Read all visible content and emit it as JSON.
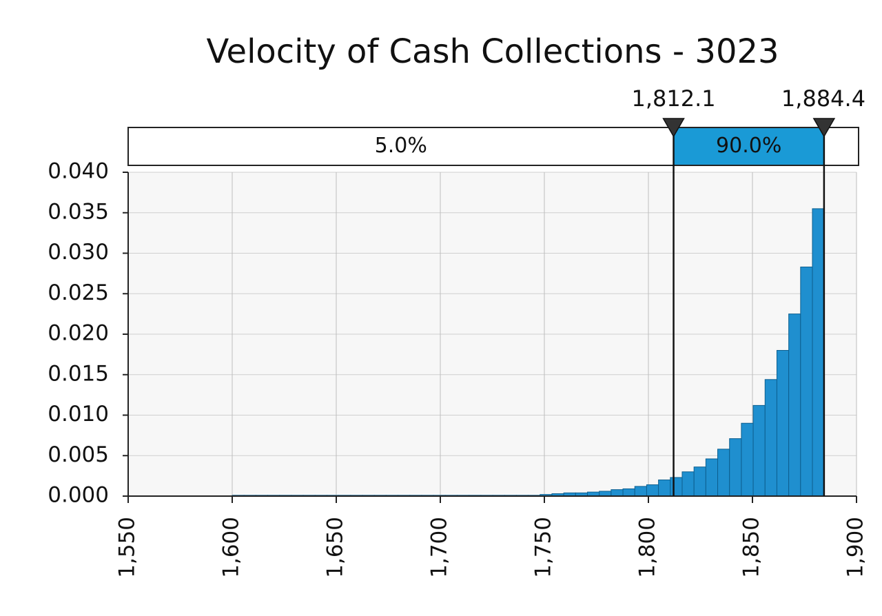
{
  "chart_data": {
    "type": "histogram",
    "title": "Velocity of Cash Collections - 3023",
    "bins": [
      1600,
      1605.69,
      1611.38,
      1617.07,
      1622.76,
      1628.45,
      1634.14,
      1639.83,
      1645.52,
      1651.21,
      1656.9,
      1662.59,
      1668.28,
      1673.97,
      1679.66,
      1685.35,
      1691.04,
      1696.73,
      1702.42,
      1708.11,
      1713.8,
      1719.49,
      1725.18,
      1730.87,
      1736.56,
      1742.25,
      1747.94,
      1753.63,
      1759.32,
      1765.01,
      1770.7,
      1776.39,
      1782.08,
      1787.77,
      1793.46,
      1799.15,
      1804.84,
      1810.53,
      1816.22,
      1821.91,
      1827.6,
      1833.29,
      1838.98,
      1844.67,
      1850.36,
      1856.05,
      1861.74,
      1867.43,
      1873.12,
      1878.81,
      1884.5
    ],
    "values": [
      0.0001,
      0.0001,
      0.0001,
      0.0001,
      0.0001,
      0.0001,
      0.0001,
      0.0001,
      0.0001,
      0.0001,
      0.0001,
      0.0001,
      0.0001,
      0.0001,
      0.0001,
      0.0001,
      0.0001,
      0.0001,
      0.0001,
      0.0001,
      0.0001,
      0.0001,
      0.0001,
      0.0001,
      0.0001,
      0.0001,
      0.0002,
      0.0003,
      0.0004,
      0.0004,
      0.0005,
      0.0006,
      0.0008,
      0.0009,
      0.0012,
      0.0014,
      0.002,
      0.0023,
      0.003,
      0.0036,
      0.0046,
      0.0058,
      0.0071,
      0.009,
      0.0112,
      0.0144,
      0.018,
      0.0225,
      0.0283,
      0.0355
    ],
    "color": "#1f8fcf",
    "xlim": [
      1550,
      1900
    ],
    "xticks": [
      {
        "value": 1550,
        "label": "1,550"
      },
      {
        "value": 1600,
        "label": "1,600"
      },
      {
        "value": 1650,
        "label": "1,650"
      },
      {
        "value": 1700,
        "label": "1,700"
      },
      {
        "value": 1750,
        "label": "1,750"
      },
      {
        "value": 1800,
        "label": "1,800"
      },
      {
        "value": 1850,
        "label": "1,850"
      },
      {
        "value": 1900,
        "label": "1,900"
      }
    ],
    "ylim": [
      0,
      0.04
    ],
    "yticks": [
      {
        "value": 0,
        "label": "0.000"
      },
      {
        "value": 0.005,
        "label": "0.005"
      },
      {
        "value": 0.01,
        "label": "0.010"
      },
      {
        "value": 0.015,
        "label": "0.015"
      },
      {
        "value": 0.02,
        "label": "0.020"
      },
      {
        "value": 0.025,
        "label": "0.025"
      },
      {
        "value": 0.03,
        "label": "0.030"
      },
      {
        "value": 0.035,
        "label": "0.035"
      },
      {
        "value": 0.04,
        "label": "0.040"
      }
    ],
    "grid": true,
    "delimiters": [
      {
        "value": 1812.1,
        "label": "1,812.1"
      },
      {
        "value": 1884.4,
        "label": "1,884.4"
      }
    ],
    "band_labels": [
      "5.0%",
      "90.0%"
    ],
    "band_color": "#1a9ad6"
  }
}
